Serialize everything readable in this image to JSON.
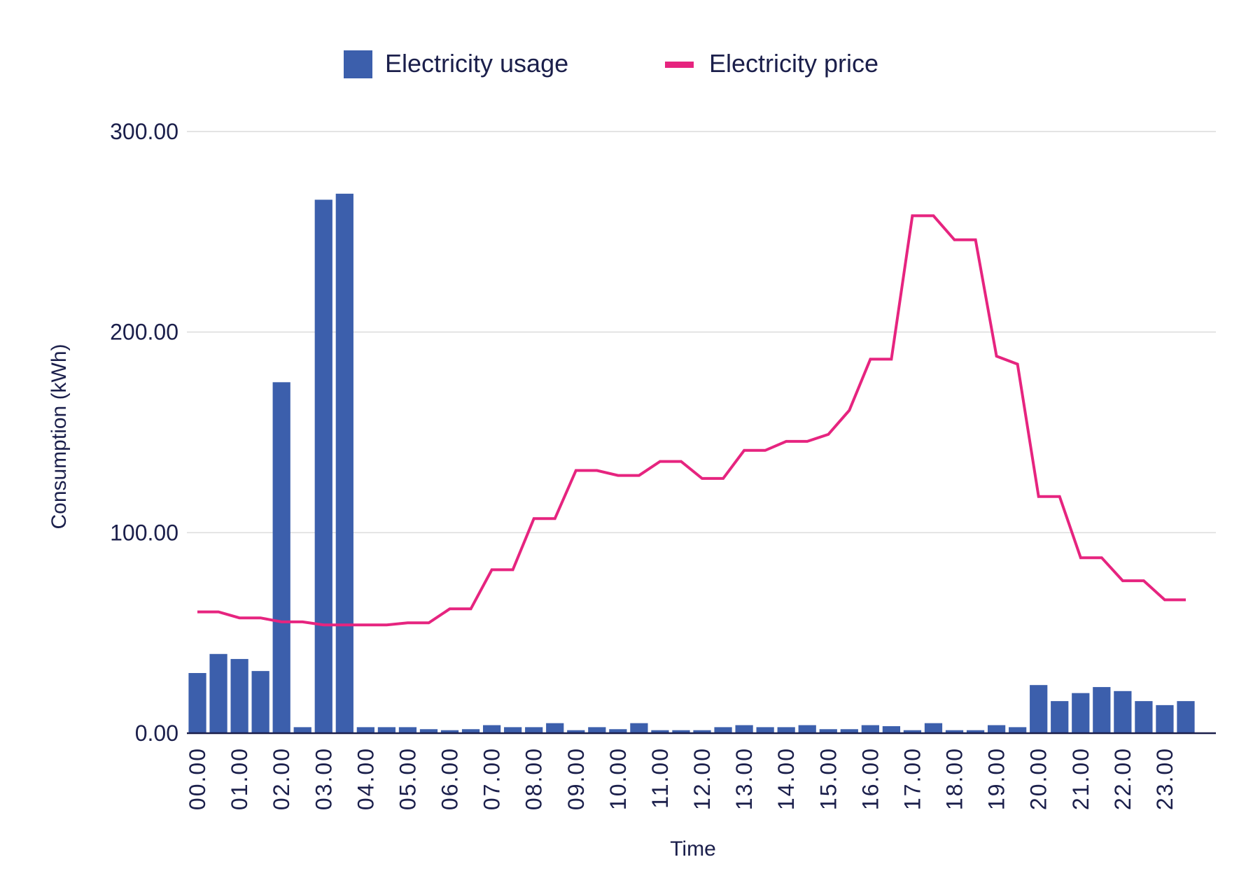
{
  "chart_data": {
    "type": "bar+line",
    "title": "",
    "xlabel": "Time",
    "ylabel": "Consumption (kWh)",
    "ylim": [
      0,
      300
    ],
    "yticks": [
      "0.00",
      "100.00",
      "200.00",
      "300.00"
    ],
    "grid": true,
    "legend_position": "top-center",
    "xtick_labels": [
      "00.00",
      "01.00",
      "02.00",
      "03.00",
      "04.00",
      "05.00",
      "06.00",
      "07.00",
      "08.00",
      "09.00",
      "10.00",
      "11.00",
      "12.00",
      "13.00",
      "14.00",
      "15.00",
      "16.00",
      "17.00",
      "18.00",
      "19.00",
      "20.00",
      "21.00",
      "22.00",
      "23.00"
    ],
    "series": [
      {
        "name": "Electricity usage",
        "type": "bar",
        "color": "#3c5fac",
        "values": [
          30,
          39.5,
          37,
          31,
          175,
          3,
          266,
          269,
          3,
          3,
          3,
          2,
          1.5,
          2,
          4,
          3,
          3,
          5,
          1.5,
          3,
          2,
          5,
          1.5,
          1.5,
          1.5,
          3,
          4,
          3,
          3,
          4,
          2,
          2,
          4,
          3.5,
          1.5,
          5,
          1.5,
          1.5,
          4,
          3,
          24,
          16,
          20,
          23,
          21,
          16,
          14,
          16
        ]
      },
      {
        "name": "Electricity price",
        "type": "line",
        "color": "#e6247f",
        "values": [
          60.5,
          60.5,
          57.5,
          57.5,
          55.5,
          55.5,
          54,
          54,
          54,
          54,
          55,
          55,
          62,
          62,
          81.5,
          81.5,
          107,
          107,
          131,
          131,
          128.5,
          128.5,
          135.5,
          135.5,
          127,
          127,
          141,
          141,
          145.5,
          145.5,
          149,
          161,
          186.5,
          186.5,
          258,
          258,
          246,
          246,
          188,
          184,
          118,
          118,
          87.5,
          87.5,
          76,
          76,
          66.5,
          66.5
        ]
      }
    ]
  }
}
